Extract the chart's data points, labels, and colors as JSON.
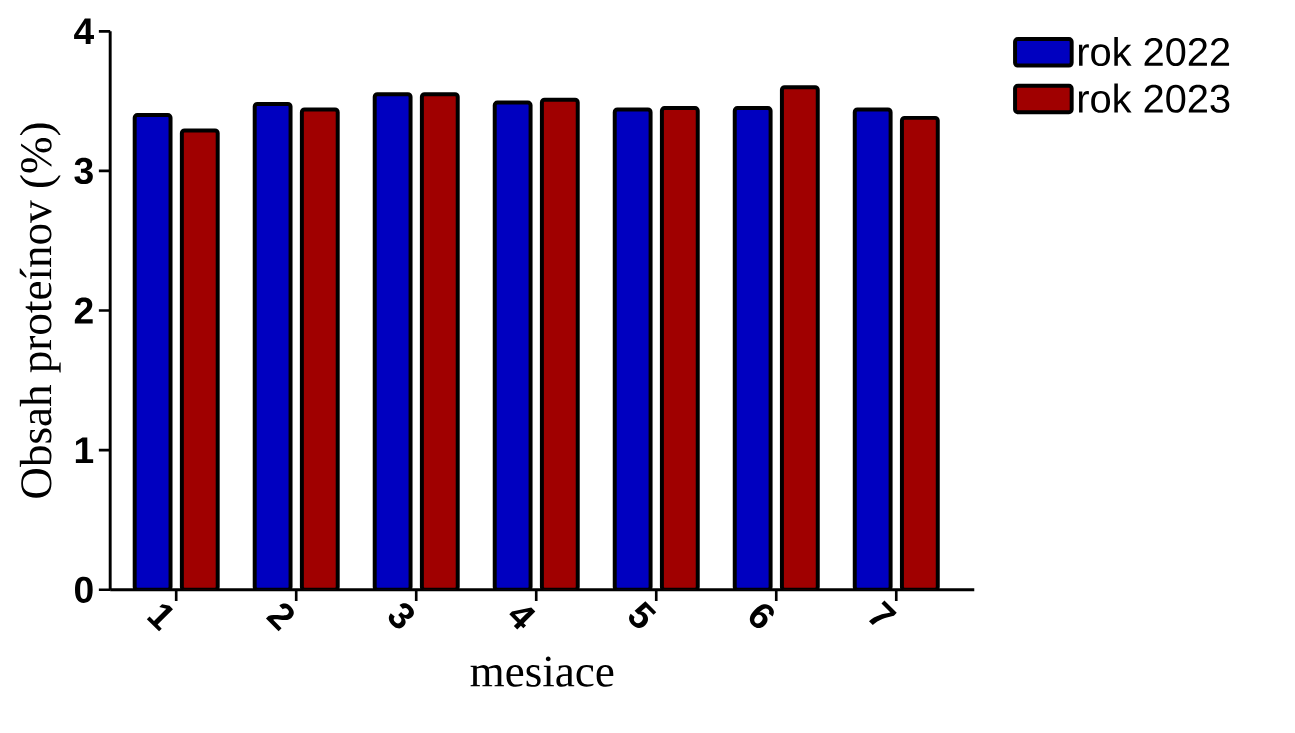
{
  "chart_data": {
    "type": "bar",
    "xlabel": "mesiace",
    "ylabel": "Obsah proteínov (%)",
    "categories": [
      "1",
      "2",
      "3",
      "4",
      "5",
      "6",
      "7"
    ],
    "series": [
      {
        "name": "rok 2022",
        "color": "#0000c0",
        "values": [
          3.4,
          3.48,
          3.55,
          3.49,
          3.44,
          3.45,
          3.44
        ]
      },
      {
        "name": "rok 2023",
        "color": "#a00000",
        "values": [
          3.29,
          3.44,
          3.55,
          3.51,
          3.45,
          3.6,
          3.38
        ]
      }
    ],
    "ylim": [
      0,
      4
    ],
    "yticks": [
      0,
      1,
      2,
      3,
      4
    ],
    "legend": "top right",
    "grid": false
  }
}
